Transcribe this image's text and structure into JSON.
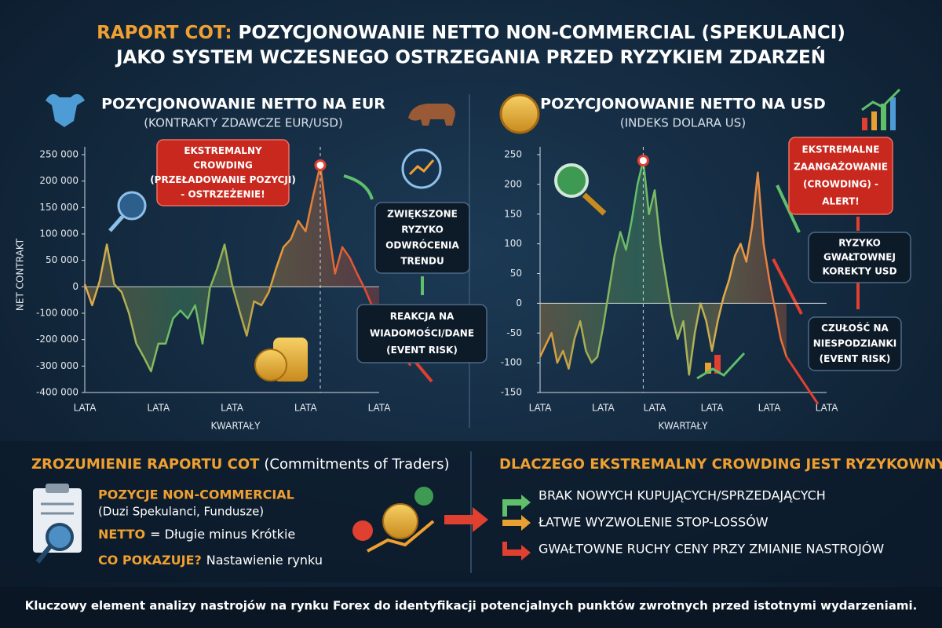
{
  "header": {
    "title_accent": "RAPORT COT:",
    "title_line1": "POZYCJONOWANIE NETTO NON-COMMERCIAL (SPEKULANCI)",
    "title_line2": "JAKO SYSTEM WCZESNEGO OSTRZEGANIA PRZED RYZYKIEM ZDARZEŃ"
  },
  "chart_data": [
    {
      "type": "line",
      "title": "POZYCJONOWANIE NETTO NA EUR",
      "subtitle": "(KONTRAKTY ZDAWCZE EUR/USD)",
      "ylabel": "NET CONTRAKT",
      "xlabel": "KWARTAŁY",
      "categories": [
        "LATA",
        null,
        null,
        null,
        null,
        null,
        null,
        null,
        null,
        null,
        "LATA",
        null,
        null,
        null,
        null,
        null,
        null,
        null,
        null,
        null,
        "LATA",
        null,
        null,
        null,
        null,
        null,
        null,
        null,
        null,
        null,
        "LATA",
        null,
        null,
        null,
        null,
        null,
        null,
        null,
        null,
        null,
        "LATA"
      ],
      "values": [
        5000,
        -70000,
        10000,
        80000,
        5000,
        -20000,
        -100000,
        -215000,
        -265000,
        -320000,
        -215000,
        -215000,
        -120000,
        -90000,
        -120000,
        -70000,
        -215000,
        -5000,
        35000,
        80000,
        5000,
        -90000,
        -185000,
        -55000,
        -70000,
        -20000,
        35000,
        75000,
        90000,
        125000,
        105000,
        170000,
        230000,
        120000,
        25000,
        75000,
        55000,
        25000,
        -5000,
        -70000,
        -120000
      ],
      "line_colors": [
        "#e8a848",
        "#5fbf6a",
        "#e89a3a",
        "#e0402f"
      ],
      "yscale": "piecewise",
      "ylim": [
        -400000,
        250000
      ],
      "yticks": [
        {
          "value": 250000,
          "label": "250 000"
        },
        {
          "value": 200000,
          "label": "200 000"
        },
        {
          "value": 150000,
          "label": "150 000"
        },
        {
          "value": 100000,
          "label": "100 000"
        },
        {
          "value": 50000,
          "label": "50 000"
        },
        0,
        {
          "value": -100000,
          "label": "-100 000"
        },
        {
          "value": -200000,
          "label": "-200 000"
        },
        {
          "value": -300000,
          "label": "-300 000"
        },
        {
          "value": -400000,
          "label": "-400 000"
        }
      ],
      "annotations": [
        {
          "lines": [
            "EKSTREMALNY",
            "CROWDING",
            "(PRZEŁADOWANIE POZYCJI)",
            "- OSTRZEŻENIE!"
          ],
          "color": "#c8281e"
        },
        {
          "lines": [
            "ZWIĘKSZONE",
            "RYZYKO",
            "ODWRÓCENIA",
            "TRENDU"
          ],
          "color": "#0d1a28"
        },
        {
          "lines": [
            "REAKCJA NA",
            "WIADOMOŚCI/DANE",
            "(EVENT RISK)"
          ],
          "color": "#0d1a28"
        }
      ]
    },
    {
      "type": "line",
      "title": "POZYCJONOWANIE NETTO NA USD",
      "subtitle": "(INDEKS DOLARA US)",
      "xlabel": "KWARTAŁY",
      "categories": [
        "LATA",
        null,
        null,
        null,
        null,
        null,
        null,
        null,
        null,
        null,
        null,
        "LATA",
        null,
        null,
        null,
        null,
        null,
        null,
        null,
        null,
        "LATA",
        null,
        null,
        null,
        null,
        null,
        null,
        null,
        null,
        null,
        "LATA",
        null,
        null,
        null,
        null,
        null,
        null,
        null,
        null,
        null,
        "LATA",
        null,
        null,
        null,
        null,
        null,
        null,
        null,
        null,
        null,
        "LATA"
      ],
      "values": [
        -90,
        -70,
        -50,
        -100,
        -80,
        -110,
        -60,
        -30,
        -80,
        -100,
        -90,
        -40,
        20,
        80,
        120,
        90,
        140,
        200,
        240,
        150,
        190,
        100,
        40,
        -20,
        -60,
        -30,
        -120,
        -50,
        0,
        -30,
        -80,
        -30,
        10,
        40,
        80,
        100,
        70,
        130,
        220,
        100,
        40,
        -10,
        -60,
        -90,
        null,
        null,
        null,
        null,
        null,
        null,
        null
      ],
      "line_colors": [
        "#e89a3a",
        "#5fbf6a",
        "#e8a848",
        "#e0402f"
      ],
      "yscale": "piecewise",
      "ylim": [
        -150,
        250
      ],
      "yticks": [
        250,
        200,
        150,
        100,
        50,
        0,
        -50,
        -100,
        -150
      ],
      "annotations": [
        {
          "lines": [
            "EKSTREMALNE",
            "ZAANGAŻOWANIE",
            "(CROWDING) -",
            "ALERT!"
          ],
          "color": "#c8281e"
        },
        {
          "lines": [
            "RYZYKO",
            "GWAŁTOWNEJ",
            "KOREKTY USD"
          ],
          "color": "#0d1a28"
        },
        {
          "lines": [
            "CZUŁOŚĆ NA",
            "NIESPODZIANKI",
            "(EVENT RISK)"
          ],
          "color": "#0d1a28"
        }
      ]
    }
  ],
  "cot": {
    "heading": "ZROZUMIENIE RAPORTU COT",
    "heading_note": "(Commitments of Traders)",
    "items": [
      {
        "term": "POZYCJE NON-COMMERCIAL",
        "text": "(Duzi Spekulanci, Fundusze)"
      },
      {
        "term": "NETTO",
        "text": "= Długie minus Krótkie"
      },
      {
        "term": "CO POKAZUJE?",
        "text": "Nastawienie rynku"
      }
    ]
  },
  "risk": {
    "heading": "DLACZEGO EKSTREMALNY CROWDING JEST RYZYKOWNY?",
    "items": [
      "BRAK NOWYCH KUPUJĄCYCH/SPRZEDAJĄCYCH",
      "ŁATWE WYZWOLENIE STOP-LOSSÓW",
      "GWAŁTOWNE RUCHY CENY PRZY ZMIANIE NASTROJÓW"
    ]
  },
  "footer": "Kluczowy element analizy nastrojów na rynku Forex do identyfikacji potencjalnych punktów zwrotnych przed istotnymi wydarzeniami."
}
